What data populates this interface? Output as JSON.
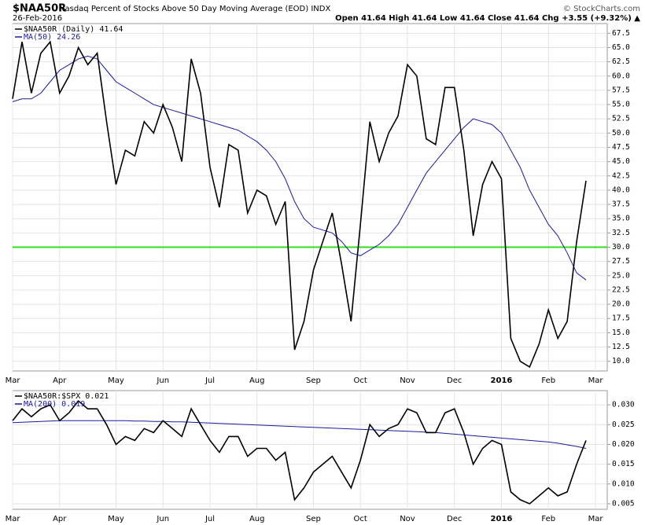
{
  "header": {
    "symbol": "$NAA50R",
    "description": "Nasdaq Percent of Stocks Above 50 Day Moving Average (EOD) INDX",
    "date": "26-Feb-2016",
    "quote": "Open 41.64  High 41.64  Low 41.64  Close 41.64  Chg +3.55 (+9.32%) ▲",
    "source": "© StockCharts.com"
  },
  "chart_data": [
    {
      "type": "line",
      "grid": true,
      "categories": [
        "Mar",
        null,
        null,
        null,
        null,
        "Apr",
        null,
        null,
        null,
        null,
        null,
        "May",
        null,
        null,
        null,
        null,
        "Jun",
        null,
        null,
        null,
        null,
        "Jul",
        null,
        null,
        null,
        null,
        "Aug",
        null,
        null,
        null,
        null,
        null,
        "Sep",
        null,
        null,
        null,
        null,
        "Oct",
        null,
        null,
        null,
        null,
        "Nov",
        null,
        null,
        null,
        null,
        "Dec",
        null,
        null,
        null,
        null,
        "2016",
        null,
        null,
        null,
        null,
        "Feb",
        null,
        null,
        null,
        null,
        "Mar"
      ],
      "ylim": [
        8.3,
        69.2
      ],
      "yticks": [
        {
          "value": 10,
          "label": "10.0"
        },
        12.5,
        {
          "value": 15,
          "label": "15.0"
        },
        17.5,
        {
          "value": 20,
          "label": "20.0"
        },
        22.5,
        {
          "value": 25,
          "label": "25.0"
        },
        27.5,
        {
          "value": 30,
          "label": "30.0"
        },
        32.5,
        {
          "value": 35,
          "label": "35.0"
        },
        37.5,
        {
          "value": 40,
          "label": "40.0"
        },
        42.5,
        {
          "value": 45,
          "label": "45.0"
        },
        47.5,
        {
          "value": 50,
          "label": "50.0"
        },
        52.5,
        {
          "value": 55,
          "label": "55.0"
        },
        57.5,
        {
          "value": 60,
          "label": "60.0"
        },
        62.5,
        {
          "value": 65,
          "label": "65.0"
        },
        67.5
      ],
      "hline": 30,
      "hline_color": "#33dd22",
      "series": [
        {
          "name": "$NAA50R (Daily) 41.64",
          "color": "#000000",
          "values": [
            56,
            66,
            57,
            64,
            66,
            57,
            60,
            65,
            62,
            64,
            52,
            41,
            47,
            46,
            52,
            50,
            55,
            51,
            45,
            63,
            57,
            44,
            37,
            48,
            47,
            36,
            40,
            39,
            34,
            38,
            12,
            17,
            26,
            31,
            36,
            27,
            17,
            34,
            52,
            45,
            50,
            53,
            62,
            60,
            49,
            48,
            58,
            58,
            47,
            32,
            41,
            45,
            42,
            14,
            10,
            9,
            13,
            19,
            14,
            17,
            31,
            41.64,
            null
          ]
        },
        {
          "name": "MA(50) 24.26",
          "color": "#1a1aa0",
          "values": [
            55.5,
            56,
            56,
            57,
            59,
            61,
            62,
            63,
            63.5,
            63,
            61,
            59,
            58,
            57,
            56,
            55,
            54.5,
            54,
            53.5,
            53,
            52.5,
            52,
            51.5,
            51,
            50.5,
            49.5,
            48.5,
            47,
            45,
            42,
            38,
            35,
            33.5,
            33,
            32.5,
            31,
            29,
            28.5,
            29.5,
            30.5,
            32,
            34,
            37,
            40,
            43,
            45,
            47,
            49,
            51,
            52.5,
            52,
            51.5,
            50,
            47,
            44,
            40,
            37,
            34,
            32,
            29,
            25.5,
            24.26,
            null
          ]
        }
      ]
    },
    {
      "type": "line",
      "grid": true,
      "categories": [
        "Mar",
        null,
        null,
        null,
        null,
        "Apr",
        null,
        null,
        null,
        null,
        null,
        "May",
        null,
        null,
        null,
        null,
        "Jun",
        null,
        null,
        null,
        null,
        "Jul",
        null,
        null,
        null,
        null,
        "Aug",
        null,
        null,
        null,
        null,
        null,
        "Sep",
        null,
        null,
        null,
        null,
        "Oct",
        null,
        null,
        null,
        null,
        "Nov",
        null,
        null,
        null,
        null,
        "Dec",
        null,
        null,
        null,
        null,
        "2016",
        null,
        null,
        null,
        null,
        "Feb",
        null,
        null,
        null,
        null,
        "Mar"
      ],
      "ylim": [
        0.0036,
        0.0336
      ],
      "yticks": [
        0.005,
        {
          "value": 0.01,
          "label": "0.010"
        },
        0.015,
        {
          "value": 0.02,
          "label": "0.020"
        },
        0.025,
        {
          "value": 0.03,
          "label": "0.030"
        }
      ],
      "series": [
        {
          "name": "$NAA50R:$SPX 0.021",
          "color": "#000000",
          "values": [
            0.026,
            0.029,
            0.027,
            0.029,
            0.03,
            0.026,
            0.028,
            0.031,
            0.029,
            0.029,
            0.025,
            0.02,
            0.022,
            0.021,
            0.024,
            0.023,
            0.026,
            0.024,
            0.022,
            0.029,
            0.025,
            0.021,
            0.018,
            0.022,
            0.022,
            0.017,
            0.019,
            0.019,
            0.016,
            0.018,
            0.006,
            0.009,
            0.013,
            0.015,
            0.017,
            0.013,
            0.009,
            0.016,
            0.025,
            0.022,
            0.024,
            0.025,
            0.029,
            0.028,
            0.023,
            0.023,
            0.028,
            0.029,
            0.023,
            0.015,
            0.019,
            0.021,
            0.02,
            0.008,
            0.006,
            0.005,
            0.007,
            0.009,
            0.007,
            0.008,
            0.015,
            0.021,
            null
          ]
        },
        {
          "name": "MA(200) 0.019",
          "color": "#1a1aa0",
          "values": [
            0.0255,
            0.0256,
            0.0257,
            0.0258,
            0.0259,
            0.026,
            0.026,
            0.026,
            0.026,
            0.026,
            0.026,
            0.026,
            0.026,
            0.0259,
            0.0259,
            0.0258,
            0.0258,
            0.0257,
            0.0257,
            0.0256,
            0.0255,
            0.0254,
            0.0253,
            0.0252,
            0.0251,
            0.025,
            0.0249,
            0.0248,
            0.0247,
            0.0246,
            0.0245,
            0.0244,
            0.0243,
            0.0242,
            0.0241,
            0.024,
            0.0239,
            0.0238,
            0.0237,
            0.0236,
            0.0235,
            0.0234,
            0.0233,
            0.0232,
            0.0231,
            0.023,
            0.0228,
            0.0226,
            0.0224,
            0.0222,
            0.022,
            0.0218,
            0.0216,
            0.0214,
            0.0212,
            0.021,
            0.0208,
            0.0206,
            0.0203,
            0.0199,
            0.0195,
            0.019,
            null
          ]
        }
      ]
    }
  ]
}
